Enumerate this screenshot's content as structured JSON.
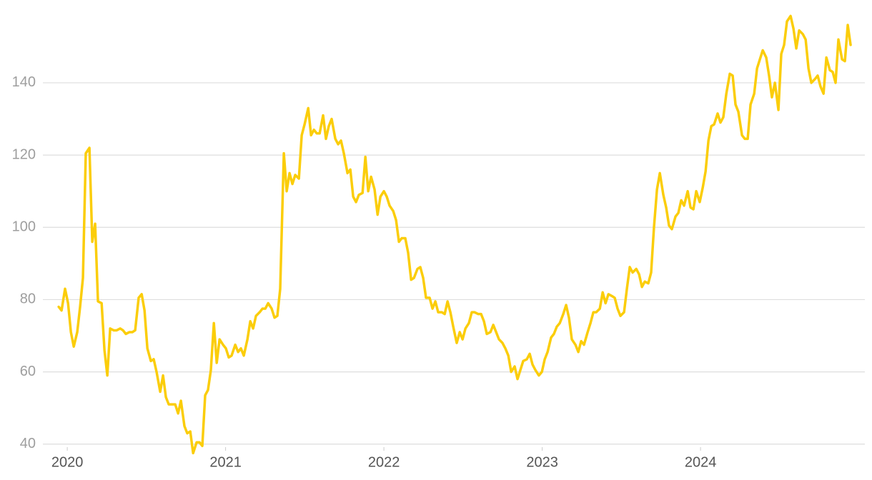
{
  "chart_data": {
    "type": "line",
    "color": "#fbcd0a",
    "grid": true,
    "xlim": [
      2019.846,
      2025.038
    ],
    "xticks": [
      2020,
      2021,
      2022,
      2023,
      2024
    ],
    "ylim": [
      36,
      160
    ],
    "yticks": [
      40,
      60,
      80,
      100,
      120,
      140
    ],
    "x": [
      2019.946,
      2019.964,
      2019.986,
      2020.005,
      2020.023,
      2020.041,
      2020.063,
      2020.081,
      2020.099,
      2020.117,
      2020.14,
      2020.158,
      2020.176,
      2020.194,
      2020.217,
      2020.235,
      2020.253,
      2020.271,
      2020.293,
      2020.312,
      2020.334,
      2020.352,
      2020.37,
      2020.393,
      2020.411,
      2020.429,
      2020.451,
      2020.47,
      2020.488,
      2020.506,
      2020.528,
      2020.546,
      2020.564,
      2020.587,
      2020.605,
      2020.623,
      2020.641,
      2020.664,
      2020.682,
      2020.7,
      2020.718,
      2020.74,
      2020.758,
      2020.777,
      2020.795,
      2020.817,
      2020.835,
      2020.853,
      2020.871,
      2020.889,
      2020.907,
      2020.926,
      2020.944,
      2020.962,
      2020.984,
      2021.002,
      2021.02,
      2021.038,
      2021.061,
      2021.079,
      2021.097,
      2021.115,
      2021.138,
      2021.156,
      2021.174,
      2021.192,
      2021.215,
      2021.233,
      2021.251,
      2021.269,
      2021.291,
      2021.309,
      2021.327,
      2021.345,
      2021.368,
      2021.386,
      2021.404,
      2021.422,
      2021.44,
      2021.463,
      2021.481,
      2021.499,
      2021.522,
      2021.54,
      2021.558,
      2021.576,
      2021.594,
      2021.616,
      2021.634,
      2021.652,
      2021.67,
      2021.693,
      2021.711,
      2021.729,
      2021.747,
      2021.77,
      2021.788,
      2021.806,
      2021.824,
      2021.842,
      2021.865,
      2021.883,
      2021.901,
      2021.919,
      2021.941,
      2021.96,
      2021.978,
      2022.0,
      2022.018,
      2022.036,
      2022.059,
      2022.077,
      2022.095,
      2022.113,
      2022.135,
      2022.153,
      2022.172,
      2022.19,
      2022.212,
      2022.23,
      2022.248,
      2022.266,
      2022.289,
      2022.307,
      2022.325,
      2022.343,
      2022.366,
      2022.384,
      2022.402,
      2022.42,
      2022.438,
      2022.46,
      2022.479,
      2022.497,
      2022.515,
      2022.537,
      2022.555,
      2022.573,
      2022.596,
      2022.614,
      2022.632,
      2022.65,
      2022.673,
      2022.691,
      2022.709,
      2022.727,
      2022.749,
      2022.767,
      2022.786,
      2022.804,
      2022.826,
      2022.844,
      2022.862,
      2022.88,
      2022.903,
      2022.921,
      2022.939,
      2022.957,
      2022.979,
      2022.998,
      2023.016,
      2023.034,
      2023.056,
      2023.074,
      2023.092,
      2023.111,
      2023.133,
      2023.151,
      2023.169,
      2023.187,
      2023.21,
      2023.228,
      2023.246,
      2023.264,
      2023.287,
      2023.305,
      2023.323,
      2023.341,
      2023.364,
      2023.382,
      2023.4,
      2023.418,
      2023.44,
      2023.458,
      2023.476,
      2023.494,
      2023.517,
      2023.535,
      2023.553,
      2023.571,
      2023.594,
      2023.612,
      2023.63,
      2023.648,
      2023.67,
      2023.688,
      2023.706,
      2023.725,
      2023.743,
      2023.765,
      2023.783,
      2023.801,
      2023.819,
      2023.842,
      2023.86,
      2023.878,
      2023.896,
      2023.919,
      2023.937,
      2023.955,
      2023.973,
      2023.995,
      2024.014,
      2024.032,
      2024.05,
      2024.068,
      2024.086,
      2024.108,
      2024.126,
      2024.144,
      2024.163,
      2024.185,
      2024.203,
      2024.221,
      2024.239,
      2024.262,
      2024.28,
      2024.298,
      2024.316,
      2024.339,
      2024.357,
      2024.375,
      2024.393,
      2024.415,
      2024.433,
      2024.451,
      2024.47,
      2024.492,
      2024.51,
      2024.528,
      2024.546,
      2024.569,
      2024.587,
      2024.605,
      2024.623,
      2024.646,
      2024.664,
      2024.682,
      2024.7,
      2024.722,
      2024.74,
      2024.758,
      2024.777,
      2024.795,
      2024.817,
      2024.835,
      2024.853,
      2024.871,
      2024.894,
      2024.912,
      2024.93,
      2024.948
    ],
    "values": [
      78,
      77,
      83,
      79,
      71,
      67,
      71,
      78,
      86,
      120.5,
      122,
      96,
      101,
      79.5,
      79,
      66,
      59,
      72,
      71.5,
      71.5,
      72,
      71.5,
      70.5,
      71,
      71,
      71.5,
      80.5,
      81.5,
      77,
      66.5,
      63,
      63.5,
      60,
      54.5,
      59,
      53,
      51,
      51,
      51,
      48.5,
      52,
      45,
      43,
      43.5,
      37.5,
      40.5,
      40.5,
      39.5,
      53.5,
      55,
      60.5,
      73.5,
      62.5,
      69,
      67.5,
      66.5,
      64,
      64.5,
      67.5,
      65.5,
      66.5,
      64.5,
      69,
      74,
      72,
      75.5,
      76.5,
      77.5,
      77.5,
      79,
      77.5,
      75,
      75.5,
      83,
      120.5,
      110,
      115,
      112,
      114.5,
      113.5,
      125.5,
      128.5,
      133,
      125.5,
      127,
      126,
      126,
      131,
      124.5,
      128,
      130,
      124.5,
      123,
      124,
      120.5,
      115,
      116,
      108.5,
      107,
      109,
      109.5,
      119.5,
      110,
      114,
      110.5,
      103.5,
      108.5,
      110,
      108.5,
      106,
      104.5,
      102,
      96,
      97,
      97,
      93,
      85.5,
      86,
      88.5,
      89,
      86,
      80.5,
      80.5,
      77.5,
      79.5,
      76.5,
      76.5,
      76,
      79.5,
      76.5,
      72.5,
      68,
      71,
      69,
      72,
      73.5,
      76.5,
      76.5,
      76,
      76,
      74,
      70.5,
      71,
      73,
      71,
      69,
      68,
      66.5,
      64.5,
      60,
      61.5,
      58,
      60.5,
      63,
      63.5,
      65,
      62,
      60.5,
      59,
      60,
      63.5,
      65.5,
      69.5,
      70.5,
      72.5,
      73.5,
      76,
      78.5,
      75,
      69,
      67.5,
      65.5,
      68.5,
      67.5,
      71,
      73.5,
      76.5,
      76.5,
      77.5,
      82,
      79,
      81.5,
      81,
      80.5,
      77.5,
      75.5,
      76.5,
      83,
      89,
      87.5,
      88.5,
      87,
      83.5,
      85,
      84.5,
      87.5,
      100,
      110.5,
      115,
      109,
      105.5,
      100.5,
      99.5,
      103,
      104,
      107.5,
      106,
      110,
      105.5,
      105,
      110,
      107,
      111,
      115.5,
      124,
      128,
      128.5,
      131.5,
      129,
      130.5,
      137,
      142.5,
      142,
      134,
      132,
      125.5,
      124.5,
      124.5,
      134,
      137,
      144,
      146.5,
      149,
      147,
      142,
      136,
      140,
      132.5,
      148,
      150.5,
      157,
      158.5,
      155,
      149.5,
      154.5,
      153.5,
      152,
      144,
      140,
      141,
      142,
      139,
      137,
      147,
      143.5,
      143,
      140,
      152,
      146.5,
      146,
      156,
      150.5
    ]
  }
}
